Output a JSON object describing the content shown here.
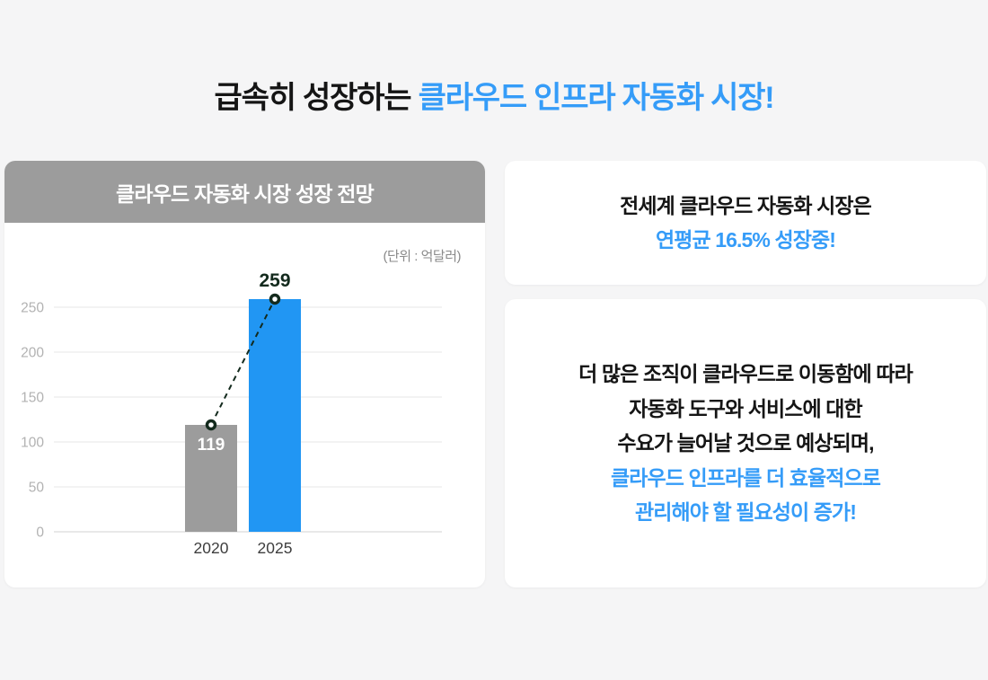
{
  "page": {
    "title_black": "급속히 성장하는 ",
    "title_blue": "클라우드 인프라 자동화 시장!"
  },
  "chart_card": {
    "header": "클라우드 자동화 시장 성장 전망"
  },
  "chart_data": {
    "type": "bar",
    "title": "클라우드 자동화 시장 성장 전망",
    "unit_label": "(단위 : 억달러)",
    "categories": [
      "2020",
      "2025"
    ],
    "values": [
      119,
      259
    ],
    "bar_colors": [
      "#9c9c9c",
      "#2196f3"
    ],
    "value_label_positions": [
      "inside",
      "above"
    ],
    "value_label_colors": [
      "#ffffff",
      "#132a1d"
    ],
    "xlabel": "",
    "ylabel": "",
    "yticks": [
      0,
      50,
      100,
      150,
      200,
      250
    ],
    "ylim": [
      0,
      280
    ],
    "grid": true,
    "legend": "none",
    "connector": {
      "style": "dashed",
      "color": "#132a1d",
      "marker": "open-circle"
    }
  },
  "info_cards": [
    {
      "lines": [
        {
          "text": "전세계 클라우드 자동화 시장은",
          "emphasis": false
        },
        {
          "text": "연평균 16.5% 성장중!",
          "emphasis": true
        }
      ]
    },
    {
      "lines": [
        {
          "text": "더 많은 조직이 클라우드로 이동함에 따라",
          "emphasis": false
        },
        {
          "text": "자동화 도구와 서비스에 대한",
          "emphasis": false
        },
        {
          "text": "수요가 늘어날 것으로 예상되며,",
          "emphasis": false
        },
        {
          "text": "클라우드 인프라를 더 효율적으로",
          "emphasis": true
        },
        {
          "text": "관리해야 할 필요성이 증가!",
          "emphasis": true
        }
      ]
    }
  ],
  "colors": {
    "page_bg": "#f5f5f6",
    "card_bg": "#ffffff",
    "header_gray": "#9c9c9c",
    "bar_gray": "#9c9c9c",
    "bar_blue": "#2196f3",
    "accent_blue": "#359cf8",
    "marker_dark": "#132a1d",
    "grid_line": "#ececec",
    "axis_line": "#d9d9d9",
    "y_tick_text": "#b2b2b2",
    "x_tick_text": "#3e3e3e",
    "unit_text": "#8a8a8a"
  }
}
